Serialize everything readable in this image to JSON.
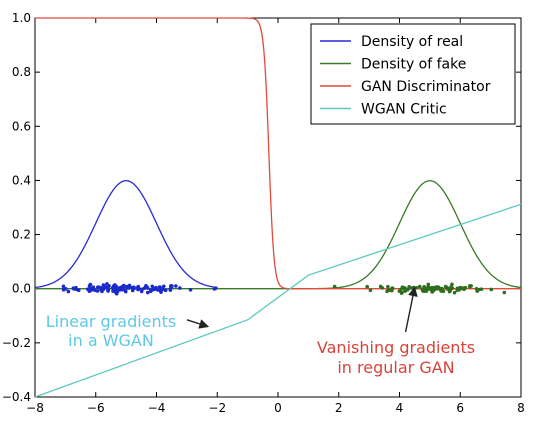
{
  "chart_data": {
    "type": "line",
    "title": "",
    "xlabel": "",
    "ylabel": "",
    "xlim": [
      -8,
      8
    ],
    "ylim": [
      -0.4,
      1.0
    ],
    "grid": false,
    "x_ticks": [
      -8,
      -6,
      -4,
      -2,
      0,
      2,
      4,
      6,
      8
    ],
    "y_ticks": [
      -0.4,
      -0.2,
      0.0,
      0.2,
      0.4,
      0.6,
      0.8,
      1.0
    ],
    "x_tick_labels": [
      "−8",
      "−6",
      "−4",
      "−2",
      "0",
      "2",
      "4",
      "6",
      "8"
    ],
    "y_tick_labels": [
      "−0.4",
      "−0.2",
      "0.0",
      "0.2",
      "0.4",
      "0.6",
      "0.8",
      "1.0"
    ],
    "legend_position": "top-right",
    "series": [
      {
        "name": "Density of real",
        "color": "#2a2ad4",
        "kind": "gaussian",
        "mean": -5,
        "sd": 1,
        "x_range": [
          -8,
          -2
        ]
      },
      {
        "name": "Density of fake",
        "color": "#3a7a2a",
        "kind": "gaussian",
        "mean": 5,
        "sd": 1,
        "x_range": [
          -8,
          8
        ]
      },
      {
        "name": "GAN Discriminator",
        "color": "#e04a3a",
        "kind": "sigmoid",
        "center": -0.3,
        "slope": 12,
        "x_range": [
          -8,
          8
        ]
      },
      {
        "name": "WGAN Critic",
        "color": "#5ec8c0",
        "kind": "polyline",
        "x": [
          -8,
          -1,
          1,
          8
        ],
        "y": [
          -0.4,
          -0.115,
          0.05,
          0.312
        ]
      }
    ],
    "scatter": [
      {
        "color": "#1a2acc",
        "center": -5,
        "spread": 1.0,
        "count": 110,
        "y_jitter": 0.007
      },
      {
        "color": "#2f6e1f",
        "center": 5,
        "spread": 0.9,
        "count": 100,
        "y_jitter": 0.007
      },
      {
        "color": "#1a2acc",
        "center": -2.1,
        "spread": 0.05,
        "count": 2,
        "y_jitter": 0.003
      }
    ],
    "annotations": [
      {
        "text_lines": [
          "Linear gradients",
          "in a WGAN"
        ],
        "color": "#5ec8e6",
        "arrow_to": [
          -2.3,
          -0.14
        ],
        "arrow_from": [
          -3.0,
          -0.115
        ]
      },
      {
        "text_lines": [
          "Vanishing gradients",
          "in regular GAN"
        ],
        "color": "#d9443a",
        "arrow_to": [
          4.5,
          0.005
        ],
        "arrow_from": [
          4.2,
          -0.16
        ]
      }
    ]
  }
}
